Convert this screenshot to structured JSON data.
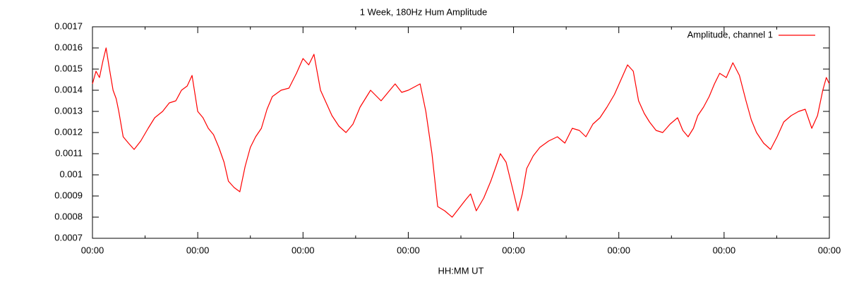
{
  "chart_data": {
    "type": "line",
    "title": "1 Week, 180Hz Hum Amplitude",
    "x_label": "HH:MM UT",
    "xlim": [
      0,
      168
    ],
    "xticks": [
      {
        "value": 0,
        "label": "00:00"
      },
      {
        "value": 24,
        "label": "00:00"
      },
      {
        "value": 48,
        "label": "00:00"
      },
      {
        "value": 72,
        "label": "00:00"
      },
      {
        "value": 96,
        "label": "00:00"
      },
      {
        "value": 120,
        "label": "00:00"
      },
      {
        "value": 144,
        "label": "00:00"
      },
      {
        "value": 168,
        "label": "00:00"
      }
    ],
    "ylim": [
      0.0007,
      0.0017
    ],
    "yticks": [
      0.0007,
      0.0008,
      0.0009,
      0.001,
      0.0011,
      0.0012,
      0.0013,
      0.0014,
      0.0015,
      0.0016,
      0.0017
    ],
    "legend": "top-right",
    "x": [
      0,
      0.8,
      1.6,
      2.4,
      3.1,
      3.8,
      4.7,
      5.4,
      6,
      7,
      8.2,
      9.5,
      11,
      12.7,
      14.2,
      16,
      17.5,
      19,
      20.3,
      21.6,
      22.7,
      24,
      25.2,
      26.4,
      27.6,
      28.8,
      30,
      31,
      32.3,
      33.6,
      34.8,
      36,
      37.2,
      38.5,
      39.8,
      41,
      43,
      44.8,
      46.5,
      48,
      49.3,
      50.5,
      52,
      53.3,
      54.6,
      56.2,
      57.8,
      59.4,
      61,
      63.4,
      65.8,
      67.4,
      69,
      70.5,
      72,
      74.7,
      76,
      77.4,
      78.7,
      80.3,
      82,
      83.5,
      85,
      86.2,
      87.5,
      89.2,
      90.8,
      92,
      93,
      94.3,
      95.6,
      97,
      98,
      99,
      100.5,
      102,
      104,
      106,
      107.7,
      109.4,
      111,
      112.5,
      114.1,
      115.7,
      117.3,
      119,
      120.5,
      122,
      123.3,
      124.5,
      125.8,
      127,
      128.5,
      130,
      131.7,
      133.4,
      134.6,
      135.8,
      137,
      138,
      139.3,
      140.6,
      141.8,
      143,
      144.5,
      146,
      147.5,
      149,
      150.2,
      151.4,
      153,
      154.6,
      156.1,
      157.6,
      159.3,
      161,
      162.5,
      164,
      165.3,
      166.5,
      167.3,
      168
    ],
    "series": [
      {
        "name": "Amplitude, channel 1",
        "color": "#ff0000",
        "values": [
          0.00143,
          0.00149,
          0.00146,
          0.00154,
          0.0016,
          0.00151,
          0.0014,
          0.00136,
          0.0013,
          0.00118,
          0.00115,
          0.00112,
          0.00116,
          0.00122,
          0.00127,
          0.0013,
          0.00134,
          0.00135,
          0.0014,
          0.00142,
          0.00147,
          0.0013,
          0.00127,
          0.00122,
          0.00119,
          0.00113,
          0.00106,
          0.00097,
          0.00094,
          0.00092,
          0.00104,
          0.00113,
          0.00118,
          0.00122,
          0.00131,
          0.00137,
          0.0014,
          0.00141,
          0.00148,
          0.00155,
          0.00152,
          0.00157,
          0.0014,
          0.00134,
          0.00128,
          0.00123,
          0.0012,
          0.00124,
          0.00132,
          0.0014,
          0.00135,
          0.00139,
          0.00143,
          0.00139,
          0.0014,
          0.00143,
          0.0013,
          0.0011,
          0.00085,
          0.00083,
          0.0008,
          0.00084,
          0.00088,
          0.00091,
          0.00083,
          0.00089,
          0.00097,
          0.00104,
          0.0011,
          0.00106,
          0.00095,
          0.00083,
          0.00091,
          0.00103,
          0.00109,
          0.00113,
          0.00116,
          0.00118,
          0.00115,
          0.00122,
          0.00121,
          0.00118,
          0.00124,
          0.00127,
          0.00132,
          0.00138,
          0.00145,
          0.00152,
          0.00149,
          0.00135,
          0.00129,
          0.00125,
          0.00121,
          0.0012,
          0.00124,
          0.00127,
          0.00121,
          0.00118,
          0.00122,
          0.00128,
          0.00132,
          0.00137,
          0.00143,
          0.00148,
          0.00146,
          0.00153,
          0.00147,
          0.00135,
          0.00126,
          0.0012,
          0.00115,
          0.00112,
          0.00118,
          0.00125,
          0.00128,
          0.0013,
          0.00131,
          0.00122,
          0.00128,
          0.0014,
          0.00146,
          0.00143
        ]
      }
    ]
  }
}
